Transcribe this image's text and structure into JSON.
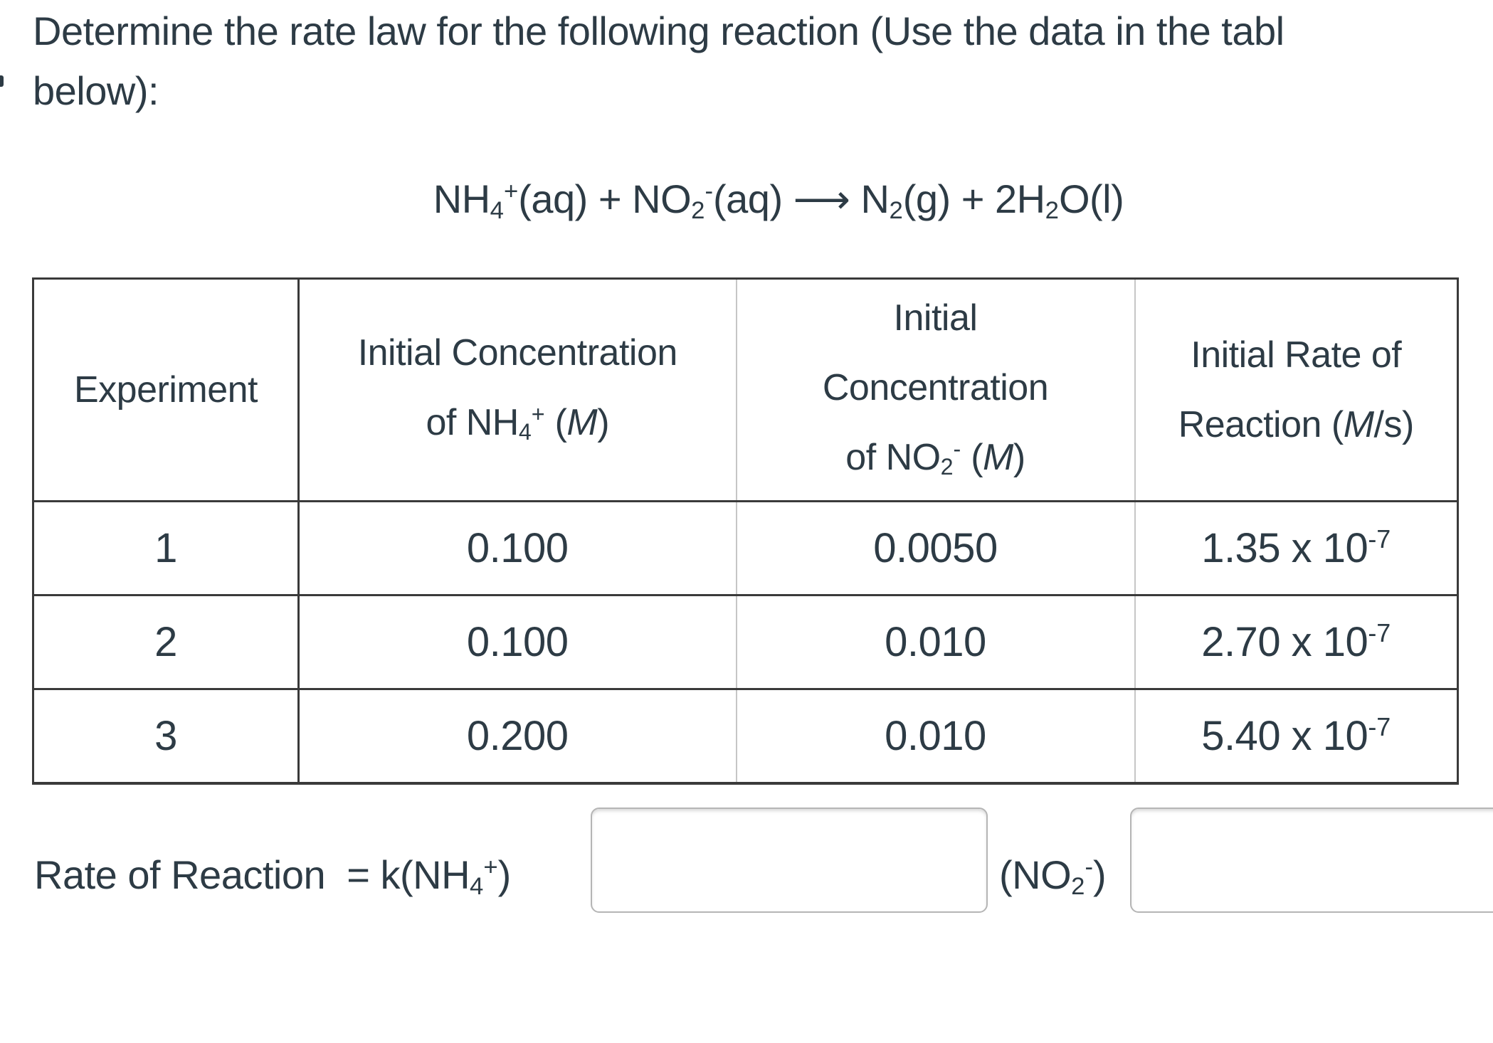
{
  "colors": {
    "text": "#2d3b45",
    "table_border_dark": "#3a3a3a",
    "table_border_light": "#c6c6c6",
    "input_border": "#b5b5b5",
    "background": "#ffffff"
  },
  "question": {
    "line1": "Determine the rate law for the following reaction (Use the data in the tabl",
    "line2": "below):"
  },
  "equation": {
    "text": "NH4+(aq) + NO2-(aq) ⟶ N2(g) + 2H2O(l)",
    "segments": [
      {
        "t": "NH"
      },
      {
        "t": "4",
        "s": "sub"
      },
      {
        "t": "+",
        "s": "sup"
      },
      {
        "t": "(aq) + NO"
      },
      {
        "t": "2",
        "s": "sub"
      },
      {
        "t": "-",
        "s": "sup"
      },
      {
        "t": "(aq) ⟶ N"
      },
      {
        "t": "2",
        "s": "sub"
      },
      {
        "t": "(g) + 2H"
      },
      {
        "t": "2",
        "s": "sub"
      },
      {
        "t": "O(l)"
      }
    ]
  },
  "table": {
    "headers": [
      {
        "label": "Experiment",
        "segments": [
          {
            "t": "Experiment"
          }
        ]
      },
      {
        "label": "Initial Concentration of NH4+ (M)",
        "segments": [
          {
            "t": "Initial Concentration"
          },
          {
            "br": true
          },
          {
            "t": "of NH"
          },
          {
            "t": "4",
            "s": "sub"
          },
          {
            "t": "+",
            "s": "sup"
          },
          {
            "t": " ("
          },
          {
            "t": "M",
            "s": "i"
          },
          {
            "t": ")"
          }
        ]
      },
      {
        "label": "Initial Concentration of NO2- (M)",
        "segments": [
          {
            "t": "Initial"
          },
          {
            "br": true
          },
          {
            "t": "Concentration"
          },
          {
            "br": true
          },
          {
            "t": "of NO"
          },
          {
            "t": "2",
            "s": "sub"
          },
          {
            "t": "-",
            "s": "sup"
          },
          {
            "t": " ("
          },
          {
            "t": "M",
            "s": "i"
          },
          {
            "t": ")"
          }
        ]
      },
      {
        "label": "Initial Rate of Reaction (M/s)",
        "segments": [
          {
            "t": "Initial Rate of"
          },
          {
            "br": true
          },
          {
            "t": "Reaction ("
          },
          {
            "t": "M",
            "s": "i"
          },
          {
            "t": "/s)"
          }
        ]
      }
    ],
    "rows": [
      {
        "experiment": "1",
        "nh4_conc": "0.100",
        "no2_conc": "0.0050",
        "rate_text": "1.35 x 10-7",
        "rate_segments": [
          {
            "t": "1.35 x 10"
          },
          {
            "t": "-7",
            "s": "sup"
          }
        ]
      },
      {
        "experiment": "2",
        "nh4_conc": "0.100",
        "no2_conc": "0.010",
        "rate_text": "2.70 x 10-7",
        "rate_segments": [
          {
            "t": "2.70 x 10"
          },
          {
            "t": "-7",
            "s": "sup"
          }
        ]
      },
      {
        "experiment": "3",
        "nh4_conc": "0.200",
        "no2_conc": "0.010",
        "rate_text": "5.40 x 10-7",
        "rate_segments": [
          {
            "t": "5.40 x 10"
          },
          {
            "t": "-7",
            "s": "sup"
          }
        ]
      }
    ]
  },
  "rate_law": {
    "prefix_text": "Rate of Reaction  = k(NH4+)",
    "prefix_segments": [
      {
        "t": "Rate of Reaction  = k(NH"
      },
      {
        "t": "4",
        "s": "sub"
      },
      {
        "t": "+",
        "s": "sup"
      },
      {
        "t": ")"
      }
    ],
    "middle_text": "(NO2-)",
    "middle_segments": [
      {
        "t": "(NO"
      },
      {
        "t": "2",
        "s": "sub"
      },
      {
        "t": "-",
        "s": "sup"
      },
      {
        "t": ")"
      }
    ],
    "nh4_exponent_input": {
      "value": ""
    },
    "no2_exponent_input": {
      "value": ""
    }
  }
}
